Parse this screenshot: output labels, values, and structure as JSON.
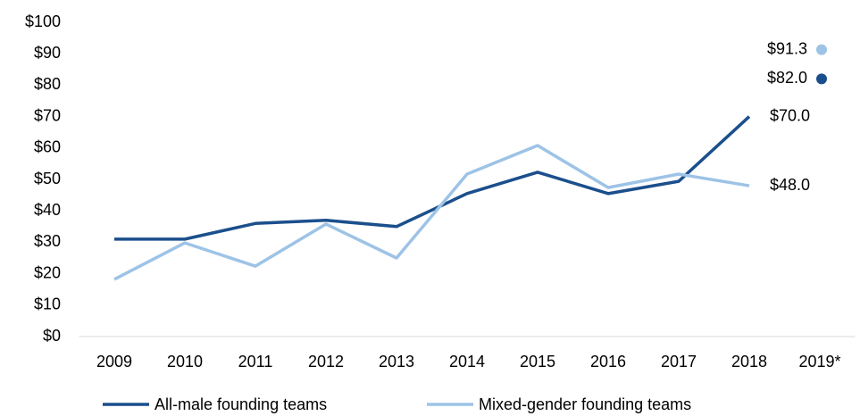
{
  "chart_data": {
    "type": "line",
    "categories": [
      "2009",
      "2010",
      "2011",
      "2012",
      "2013",
      "2014",
      "2015",
      "2016",
      "2017",
      "2018",
      "2019*"
    ],
    "series": [
      {
        "name": "All-male founding teams",
        "color": "#1b4f8c",
        "values": [
          31,
          31,
          36,
          37,
          35,
          45.5,
          52.3,
          45.5,
          49.4,
          70.0,
          82.0
        ],
        "value_labels": [
          null,
          null,
          null,
          null,
          null,
          null,
          null,
          null,
          null,
          "$70.0",
          "$82.0"
        ]
      },
      {
        "name": "Mixed-gender founding teams",
        "color": "#9dc3e6",
        "values": [
          18.2,
          29.8,
          22.4,
          35.8,
          25,
          51.7,
          60.8,
          47.4,
          51.7,
          48.0,
          91.3
        ],
        "value_labels": [
          null,
          null,
          null,
          null,
          null,
          null,
          null,
          null,
          null,
          "$48.0",
          "$91.3"
        ]
      }
    ],
    "ylim": [
      0,
      100
    ],
    "yticks": [
      {
        "value": 0,
        "label": "$0"
      },
      {
        "value": 10,
        "label": "$10"
      },
      {
        "value": 20,
        "label": "$20"
      },
      {
        "value": 30,
        "label": "$30"
      },
      {
        "value": 40,
        "label": "$40"
      },
      {
        "value": 50,
        "label": "$50"
      },
      {
        "value": 60,
        "label": "$60"
      },
      {
        "value": 70,
        "label": "$70"
      },
      {
        "value": 80,
        "label": "$80"
      },
      {
        "value": 90,
        "label": "$90"
      },
      {
        "value": 100,
        "label": "$100"
      }
    ],
    "grid": false,
    "legend": "bottom"
  }
}
